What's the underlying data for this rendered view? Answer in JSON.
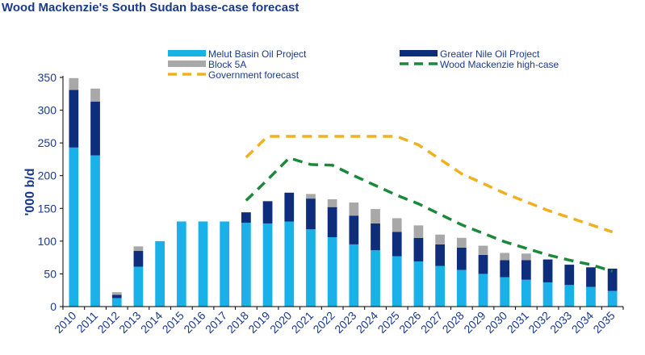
{
  "title": "Wood Mackenzie's South Sudan base-case forecast",
  "colors": {
    "melut": "#1ab0e8",
    "greater_nile": "#0e2e7c",
    "block5a": "#a8a8a8",
    "government": "#f0b020",
    "woodmac_high": "#1a8a3a",
    "axis_text": "#1a3a8c"
  },
  "chart_data": {
    "type": "bar",
    "title": "Wood Mackenzie's South Sudan base-case forecast",
    "xlabel": "",
    "ylabel": "'000 b/d",
    "ylim": [
      0,
      350
    ],
    "yticks": [
      0,
      50,
      100,
      150,
      200,
      250,
      300,
      350
    ],
    "categories": [
      "2010",
      "2011",
      "2012",
      "2013",
      "2014",
      "2015",
      "2016",
      "2017",
      "2018",
      "2019",
      "2020",
      "2021",
      "2022",
      "2023",
      "2024",
      "2025",
      "2026",
      "2027",
      "2028",
      "2029",
      "2030",
      "2031",
      "2032",
      "2033",
      "2034",
      "2035"
    ],
    "stacked": true,
    "series": [
      {
        "name": "Melut Basin Oil Project",
        "kind": "bar",
        "color_key": "melut",
        "values": [
          243,
          231,
          13,
          61,
          100,
          130,
          130,
          130,
          128,
          127,
          130,
          118,
          106,
          95,
          86,
          77,
          69,
          62,
          56,
          50,
          45,
          41,
          37,
          33,
          30,
          24
        ]
      },
      {
        "name": "Greater Nile Oil Project",
        "kind": "bar",
        "color_key": "greater_nile",
        "values": [
          88,
          82,
          5,
          24,
          0,
          0,
          0,
          0,
          16,
          34,
          44,
          47,
          46,
          44,
          41,
          37,
          36,
          33,
          34,
          29,
          26,
          30,
          35,
          31,
          30,
          34
        ]
      },
      {
        "name": "Block 5A",
        "kind": "bar",
        "color_key": "block5a",
        "values": [
          18,
          20,
          4,
          7,
          0,
          0,
          0,
          0,
          0,
          0,
          0,
          7,
          12,
          20,
          22,
          21,
          19,
          15,
          15,
          14,
          11,
          10,
          0,
          0,
          0,
          0
        ]
      },
      {
        "name": "Government forecast",
        "kind": "line",
        "style": "dashed",
        "color_key": "government",
        "x": [
          "2018",
          "2019",
          "2020",
          "2021",
          "2022",
          "2023",
          "2024",
          "2025",
          "2026",
          "2027",
          "2028",
          "2029",
          "2030",
          "2031",
          "2032",
          "2033",
          "2034",
          "2035"
        ],
        "values": [
          228,
          260,
          260,
          260,
          260,
          260,
          260,
          260,
          247,
          225,
          203,
          188,
          173,
          160,
          147,
          136,
          125,
          114
        ]
      },
      {
        "name": "Wood Mackenzie high-case",
        "kind": "line",
        "style": "dashed",
        "color_key": "woodmac_high",
        "x": [
          "2018",
          "2019",
          "2020",
          "2021",
          "2022",
          "2023",
          "2024",
          "2025",
          "2026",
          "2027",
          "2028",
          "2029",
          "2030",
          "2031",
          "2032",
          "2033",
          "2034",
          "2035"
        ],
        "values": [
          162,
          194,
          227,
          217,
          216,
          200,
          185,
          170,
          157,
          141,
          125,
          112,
          99,
          89,
          79,
          71,
          64,
          54
        ]
      }
    ],
    "legend": {
      "placement": "top",
      "entries": [
        {
          "label": "Melut Basin Oil Project",
          "color_key": "melut",
          "kind": "bar"
        },
        {
          "label": "Block 5A",
          "color_key": "block5a",
          "kind": "bar"
        },
        {
          "label": "Government forecast",
          "color_key": "government",
          "kind": "line"
        },
        {
          "label": "Greater Nile Oil Project",
          "color_key": "greater_nile",
          "kind": "bar"
        },
        {
          "label": "Wood Mackenzie high-case",
          "color_key": "woodmac_high",
          "kind": "line"
        }
      ]
    },
    "grid": false
  }
}
